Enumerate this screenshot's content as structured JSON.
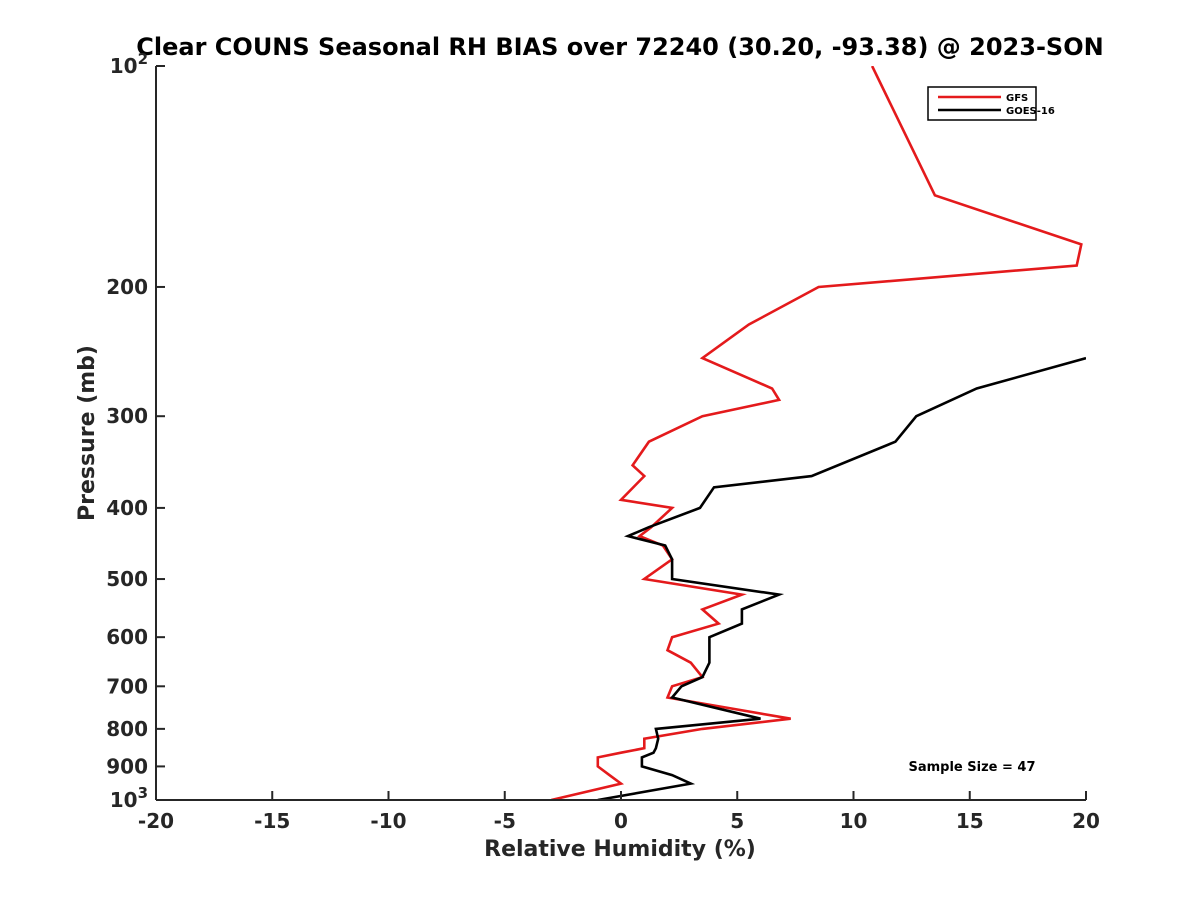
{
  "chart_data": {
    "type": "line",
    "title": "Clear COUNS Seasonal RH BIAS over 72240 (30.20, -93.38) @ 2023-SON",
    "xlabel": "Relative Humidity (%)",
    "ylabel": "Pressure (mb)",
    "xlim": [
      -20,
      20
    ],
    "ylim": [
      100,
      1000
    ],
    "y_scale": "log",
    "y_reversed": true,
    "x_ticks": [
      "-20",
      "-15",
      "-10",
      "-5",
      "0",
      "5",
      "10",
      "15",
      "20"
    ],
    "y_ticks": [
      {
        "value": 100,
        "label": "10",
        "sup": "2"
      },
      {
        "value": 200,
        "label": "200",
        "sup": ""
      },
      {
        "value": 300,
        "label": "300",
        "sup": ""
      },
      {
        "value": 400,
        "label": "400",
        "sup": ""
      },
      {
        "value": 500,
        "label": "500",
        "sup": ""
      },
      {
        "value": 600,
        "label": "600",
        "sup": ""
      },
      {
        "value": 700,
        "label": "700",
        "sup": ""
      },
      {
        "value": 800,
        "label": "800",
        "sup": ""
      },
      {
        "value": 900,
        "label": "900",
        "sup": ""
      },
      {
        "value": 1000,
        "label": "10",
        "sup": "3"
      }
    ],
    "legend_position": "top-right",
    "annotation": "Sample Size = 47",
    "series": [
      {
        "name": "GFS",
        "color": "#e41a1c",
        "points": [
          [
            10.8,
            100
          ],
          [
            13.5,
            150
          ],
          [
            19.8,
            175
          ],
          [
            19.6,
            187
          ],
          [
            8.5,
            200
          ],
          [
            5.5,
            225
          ],
          [
            3.5,
            250
          ],
          [
            6.5,
            275
          ],
          [
            6.8,
            285
          ],
          [
            3.5,
            300
          ],
          [
            1.2,
            325
          ],
          [
            0.5,
            350
          ],
          [
            1.0,
            362
          ],
          [
            0.0,
            390
          ],
          [
            2.2,
            400
          ],
          [
            1.3,
            425
          ],
          [
            0.8,
            437
          ],
          [
            1.8,
            450
          ],
          [
            2.2,
            470
          ],
          [
            1.0,
            500
          ],
          [
            5.2,
            525
          ],
          [
            3.5,
            550
          ],
          [
            4.2,
            575
          ],
          [
            2.2,
            600
          ],
          [
            2.0,
            625
          ],
          [
            3.0,
            650
          ],
          [
            3.5,
            680
          ],
          [
            2.2,
            700
          ],
          [
            2.0,
            725
          ],
          [
            7.3,
            775
          ],
          [
            3.5,
            800
          ],
          [
            1.0,
            825
          ],
          [
            1.0,
            850
          ],
          [
            0.0,
            862
          ],
          [
            -1.0,
            875
          ],
          [
            -1.0,
            900
          ],
          [
            -0.5,
            925
          ],
          [
            0.0,
            950
          ],
          [
            -3.0,
            1000
          ]
        ]
      },
      {
        "name": "GOES-16",
        "color": "#000000",
        "points": [
          [
            20.0,
            250
          ],
          [
            15.3,
            275
          ],
          [
            12.7,
            300
          ],
          [
            11.8,
            325
          ],
          [
            8.2,
            362
          ],
          [
            4.0,
            375
          ],
          [
            3.4,
            400
          ],
          [
            1.2,
            425
          ],
          [
            0.3,
            437
          ],
          [
            1.9,
            450
          ],
          [
            2.2,
            470
          ],
          [
            2.2,
            500
          ],
          [
            6.8,
            525
          ],
          [
            5.2,
            550
          ],
          [
            5.2,
            575
          ],
          [
            3.8,
            600
          ],
          [
            3.8,
            625
          ],
          [
            3.8,
            650
          ],
          [
            3.5,
            680
          ],
          [
            2.6,
            700
          ],
          [
            2.2,
            725
          ],
          [
            6.0,
            775
          ],
          [
            1.5,
            800
          ],
          [
            1.6,
            825
          ],
          [
            1.5,
            850
          ],
          [
            1.4,
            862
          ],
          [
            0.9,
            875
          ],
          [
            0.9,
            900
          ],
          [
            2.2,
            925
          ],
          [
            3.0,
            950
          ],
          [
            -1.0,
            1000
          ]
        ]
      }
    ]
  }
}
